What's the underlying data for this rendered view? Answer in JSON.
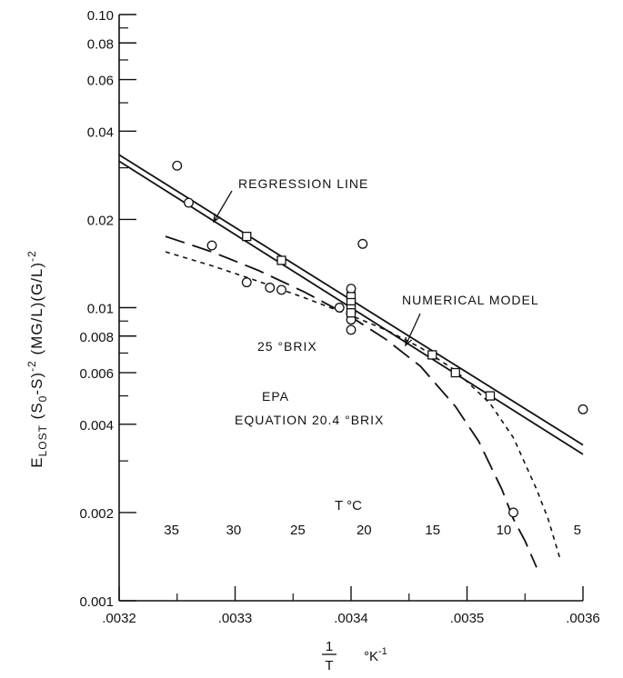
{
  "chart_data": {
    "type": "scatter",
    "x_scale": "linear",
    "y_scale": "log",
    "xlim": [
      0.0032,
      0.0036
    ],
    "ylim": [
      0.001,
      0.1
    ],
    "x_ticks": [
      0.0032,
      0.0033,
      0.0034,
      0.0035,
      0.0036
    ],
    "x_tick_labels": [
      ".0032",
      ".0033",
      ".0034",
      ".0035",
      ".0036"
    ],
    "y_ticks": [
      0.001,
      0.002,
      0.004,
      0.006,
      0.008,
      0.01,
      0.02,
      0.04,
      0.06,
      0.08,
      0.1
    ],
    "y_tick_labels": [
      "0.001",
      "0.002",
      "0.004",
      "0.006",
      "0.008",
      "0.01",
      "0.02",
      "0.04",
      "0.06",
      "0.08",
      "0.10"
    ],
    "xlabel_num": "1",
    "xlabel_den": "T",
    "xlabel_unit": "°K",
    "xlabel_exp": "-1",
    "ylabel": {
      "e": "E",
      "lost": "LOST",
      "mid1": " (S",
      "s0": "0",
      "mid2": "-S)",
      "exp1": "-2",
      "mid3": " (MG/L)(G/L)",
      "exp2": "-2"
    },
    "top_axis_label": "T °C",
    "top_axis_ticks": [
      35,
      30,
      25,
      20,
      15,
      10,
      5
    ],
    "grid": false,
    "series": [
      {
        "name": "REGRESSION LINE",
        "kind": "line",
        "x": [
          0.0032,
          0.0036
        ],
        "y": [
          0.0316,
          0.00316
        ]
      },
      {
        "name": "NUMERICAL MODEL",
        "kind": "line",
        "x": [
          0.0032,
          0.0036
        ],
        "y": [
          0.0332,
          0.0034
        ]
      },
      {
        "name": "25 °BRIX",
        "kind": "line",
        "x": [
          0.00324,
          0.00328,
          0.00332,
          0.00336,
          0.0034,
          0.00343,
          0.00346,
          0.00349,
          0.00352,
          0.00354,
          0.00356,
          0.00357,
          0.00358
        ],
        "y": [
          0.0155,
          0.0139,
          0.0123,
          0.0108,
          0.0094,
          0.0084,
          0.0073,
          0.0061,
          0.0047,
          0.0036,
          0.0024,
          0.0019,
          0.0014
        ]
      },
      {
        "name": "EPA EQUATION 20.4 °BRIX",
        "kind": "line",
        "x": [
          0.00324,
          0.00328,
          0.00332,
          0.00336,
          0.0034,
          0.00343,
          0.00346,
          0.00349,
          0.00351,
          0.00353,
          0.00354,
          0.00355,
          0.00356
        ],
        "y": [
          0.0175,
          0.0155,
          0.0134,
          0.0113,
          0.0093,
          0.0078,
          0.0063,
          0.0046,
          0.0035,
          0.0024,
          0.0019,
          0.0016,
          0.0013
        ]
      },
      {
        "name": "",
        "kind": "points",
        "marker": "circle",
        "x": [
          0.00325,
          0.00326,
          0.00328,
          0.00331,
          0.00333,
          0.00334,
          0.00339,
          0.0034,
          0.0034,
          0.0034,
          0.0034,
          0.00341,
          0.00354,
          0.0036
        ],
        "y": [
          0.0305,
          0.0228,
          0.0163,
          0.0122,
          0.0117,
          0.0115,
          0.01,
          0.0116,
          0.0096,
          0.0091,
          0.0084,
          0.0165,
          0.002,
          0.0045
        ]
      },
      {
        "name": "",
        "kind": "points",
        "marker": "square",
        "x": [
          0.00331,
          0.00334,
          0.0034,
          0.0034,
          0.0034,
          0.0034,
          0.00347,
          0.00349,
          0.00352
        ],
        "y": [
          0.0175,
          0.0145,
          0.0109,
          0.0104,
          0.0099,
          0.0096,
          0.0069,
          0.006,
          0.005
        ]
      }
    ],
    "annotations": {
      "regression": "REGRESSION LINE",
      "numerical": "NUMERICAL MODEL",
      "brix25": "25 °BRIX",
      "epa1": "EPA",
      "epa2": "EQUATION  20.4 °BRIX"
    }
  }
}
